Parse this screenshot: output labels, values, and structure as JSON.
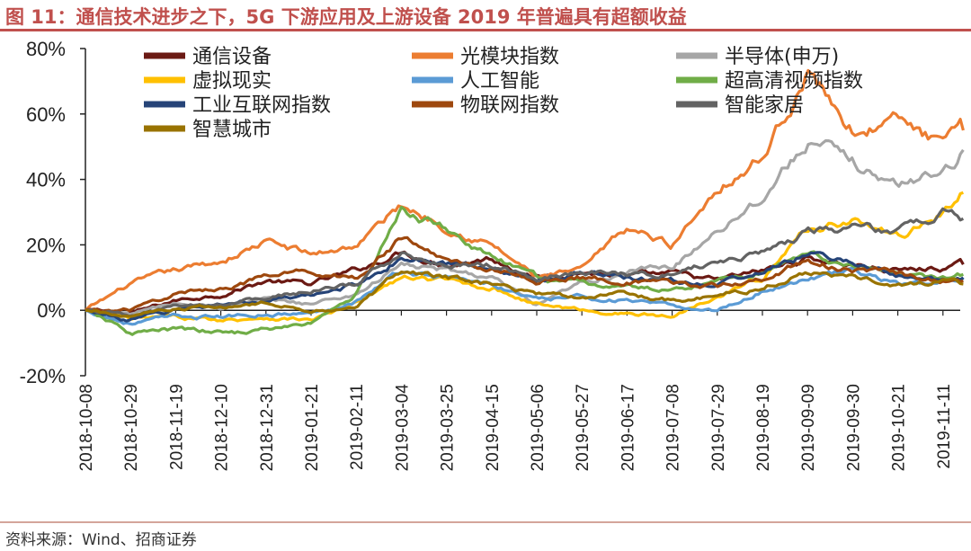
{
  "figure": {
    "title": "图 11：通信技术进步之下，5G 下游应用及上游设备 2019 年普遍具有超额收益",
    "source": "资料来源：Wind、招商证券"
  },
  "chart_data": {
    "type": "line",
    "title": "图 11：通信技术进步之下，5G 下游应用及上游设备 2019 年普遍具有超额收益",
    "xlabel": "",
    "ylabel": "",
    "ylim": [
      -20,
      80
    ],
    "yticks": [
      "-20%",
      "0%",
      "20%",
      "40%",
      "60%",
      "80%"
    ],
    "ytick_values": [
      -20,
      0,
      20,
      40,
      60,
      80
    ],
    "grid": false,
    "legend_position": "top-left",
    "categories": [
      "2018-10-08",
      "2018-10-29",
      "2018-11-19",
      "2018-12-10",
      "2018-12-31",
      "2019-01-21",
      "2019-02-11",
      "2019-03-04",
      "2019-03-25",
      "2019-04-15",
      "2019-05-06",
      "2019-05-27",
      "2019-06-17",
      "2019-07-08",
      "2019-07-29",
      "2019-08-19",
      "2019-09-09",
      "2019-09-30",
      "2019-10-21",
      "2019-11-11"
    ],
    "x_end_index": 19.45,
    "series": [
      {
        "name": "通信设备",
        "color": "#6b1a14",
        "points": [
          [
            0,
            0
          ],
          [
            1,
            -1
          ],
          [
            2,
            3
          ],
          [
            3,
            5
          ],
          [
            4,
            9
          ],
          [
            5,
            8
          ],
          [
            6,
            12
          ],
          [
            7,
            18
          ],
          [
            8,
            14
          ],
          [
            9,
            16
          ],
          [
            10,
            10
          ],
          [
            11,
            12
          ],
          [
            12,
            10
          ],
          [
            13,
            11
          ],
          [
            14,
            9
          ],
          [
            15,
            12
          ],
          [
            16,
            16
          ],
          [
            17,
            14
          ],
          [
            18,
            12
          ],
          [
            19,
            13
          ],
          [
            19.45,
            14
          ]
        ]
      },
      {
        "name": "光模块指数",
        "color": "#ec7d31",
        "points": [
          [
            0,
            0
          ],
          [
            1,
            8
          ],
          [
            2,
            12
          ],
          [
            3,
            15
          ],
          [
            4,
            21
          ],
          [
            5,
            17
          ],
          [
            6,
            20
          ],
          [
            7,
            32
          ],
          [
            8,
            26
          ],
          [
            9,
            20
          ],
          [
            10,
            10
          ],
          [
            11,
            12
          ],
          [
            12,
            25
          ],
          [
            13,
            20
          ],
          [
            14,
            38
          ],
          [
            15,
            47
          ],
          [
            16,
            73
          ],
          [
            17,
            55
          ],
          [
            18,
            58
          ],
          [
            19,
            50
          ],
          [
            19.45,
            55
          ]
        ]
      },
      {
        "name": "半导体(申万)",
        "color": "#a6a6a6",
        "points": [
          [
            0,
            0
          ],
          [
            1,
            -1
          ],
          [
            2,
            2
          ],
          [
            3,
            1
          ],
          [
            4,
            3
          ],
          [
            5,
            2
          ],
          [
            6,
            5
          ],
          [
            7,
            14
          ],
          [
            8,
            12
          ],
          [
            9,
            10
          ],
          [
            10,
            1
          ],
          [
            11,
            8
          ],
          [
            12,
            12
          ],
          [
            13,
            13
          ],
          [
            14,
            25
          ],
          [
            15,
            35
          ],
          [
            16,
            52
          ],
          [
            17,
            45
          ],
          [
            18,
            38
          ],
          [
            19,
            43
          ],
          [
            19.45,
            49
          ]
        ]
      },
      {
        "name": "虚拟现实",
        "color": "#ffc000",
        "points": [
          [
            0,
            0
          ],
          [
            1,
            -3
          ],
          [
            2,
            -2
          ],
          [
            3,
            -3
          ],
          [
            4,
            -2
          ],
          [
            5,
            -3
          ],
          [
            6,
            2
          ],
          [
            7,
            10
          ],
          [
            8,
            9
          ],
          [
            9,
            7
          ],
          [
            10,
            2
          ],
          [
            11,
            0
          ],
          [
            12,
            -1
          ],
          [
            13,
            -2
          ],
          [
            14,
            5
          ],
          [
            15,
            10
          ],
          [
            16,
            25
          ],
          [
            17,
            28
          ],
          [
            18,
            22
          ],
          [
            19,
            30
          ],
          [
            19.45,
            36
          ]
        ]
      },
      {
        "name": "人工智能",
        "color": "#5b9bd5",
        "points": [
          [
            0,
            0
          ],
          [
            1,
            -4
          ],
          [
            2,
            -2
          ],
          [
            3,
            -2
          ],
          [
            4,
            -1
          ],
          [
            5,
            -1
          ],
          [
            6,
            3
          ],
          [
            7,
            12
          ],
          [
            8,
            10
          ],
          [
            9,
            8
          ],
          [
            10,
            3
          ],
          [
            11,
            4
          ],
          [
            12,
            3
          ],
          [
            13,
            1
          ],
          [
            14,
            0
          ],
          [
            15,
            6
          ],
          [
            16,
            10
          ],
          [
            17,
            12
          ],
          [
            18,
            8
          ],
          [
            19,
            8
          ],
          [
            19.45,
            10
          ]
        ]
      },
      {
        "name": "超高清视频指数",
        "color": "#70ad47",
        "points": [
          [
            0,
            0
          ],
          [
            1,
            -7
          ],
          [
            2,
            -6
          ],
          [
            3,
            -7
          ],
          [
            4,
            -6
          ],
          [
            5,
            -4
          ],
          [
            6,
            5
          ],
          [
            7,
            30
          ],
          [
            8,
            25
          ],
          [
            9,
            16
          ],
          [
            10,
            10
          ],
          [
            11,
            8
          ],
          [
            12,
            7
          ],
          [
            13,
            6
          ],
          [
            14,
            9
          ],
          [
            15,
            12
          ],
          [
            16,
            18
          ],
          [
            17,
            13
          ],
          [
            18,
            11
          ],
          [
            19,
            10
          ],
          [
            19.45,
            11
          ]
        ]
      },
      {
        "name": "工业互联网指数",
        "color": "#264478",
        "points": [
          [
            0,
            0
          ],
          [
            1,
            -3
          ],
          [
            2,
            0
          ],
          [
            3,
            2
          ],
          [
            4,
            3
          ],
          [
            5,
            4
          ],
          [
            6,
            8
          ],
          [
            7,
            16
          ],
          [
            8,
            14
          ],
          [
            9,
            13
          ],
          [
            10,
            10
          ],
          [
            11,
            11
          ],
          [
            12,
            10
          ],
          [
            13,
            9
          ],
          [
            14,
            8
          ],
          [
            15,
            12
          ],
          [
            16,
            17
          ],
          [
            17,
            15
          ],
          [
            18,
            10
          ],
          [
            19,
            9
          ],
          [
            19.45,
            10
          ]
        ]
      },
      {
        "name": "物联网指数",
        "color": "#9e480e",
        "points": [
          [
            0,
            0
          ],
          [
            1,
            0
          ],
          [
            2,
            5
          ],
          [
            3,
            7
          ],
          [
            4,
            10
          ],
          [
            5,
            12
          ],
          [
            6,
            10
          ],
          [
            7,
            22
          ],
          [
            8,
            15
          ],
          [
            9,
            13
          ],
          [
            10,
            9
          ],
          [
            11,
            10
          ],
          [
            12,
            9
          ],
          [
            13,
            8
          ],
          [
            14,
            7
          ],
          [
            15,
            10
          ],
          [
            16,
            15
          ],
          [
            17,
            12
          ],
          [
            18,
            11
          ],
          [
            19,
            9
          ],
          [
            19.45,
            9
          ]
        ]
      },
      {
        "name": "智能家居",
        "color": "#636363",
        "points": [
          [
            0,
            0
          ],
          [
            1,
            -2
          ],
          [
            2,
            1
          ],
          [
            3,
            2
          ],
          [
            4,
            4
          ],
          [
            5,
            6
          ],
          [
            6,
            8
          ],
          [
            7,
            18
          ],
          [
            8,
            14
          ],
          [
            9,
            14
          ],
          [
            10,
            10
          ],
          [
            11,
            12
          ],
          [
            12,
            11
          ],
          [
            13,
            11
          ],
          [
            14,
            15
          ],
          [
            15,
            18
          ],
          [
            16,
            24
          ],
          [
            17,
            25
          ],
          [
            18,
            24
          ],
          [
            19,
            30
          ],
          [
            19.45,
            28
          ]
        ]
      },
      {
        "name": "智慧城市",
        "color": "#997300",
        "points": [
          [
            0,
            0
          ],
          [
            1,
            -2
          ],
          [
            2,
            0
          ],
          [
            3,
            1
          ],
          [
            4,
            2
          ],
          [
            5,
            0
          ],
          [
            6,
            1
          ],
          [
            7,
            12
          ],
          [
            8,
            10
          ],
          [
            9,
            8
          ],
          [
            10,
            5
          ],
          [
            11,
            4
          ],
          [
            12,
            5
          ],
          [
            13,
            3
          ],
          [
            14,
            5
          ],
          [
            15,
            7
          ],
          [
            16,
            12
          ],
          [
            17,
            10
          ],
          [
            18,
            8
          ],
          [
            19,
            9
          ],
          [
            19.45,
            8
          ]
        ]
      }
    ]
  }
}
